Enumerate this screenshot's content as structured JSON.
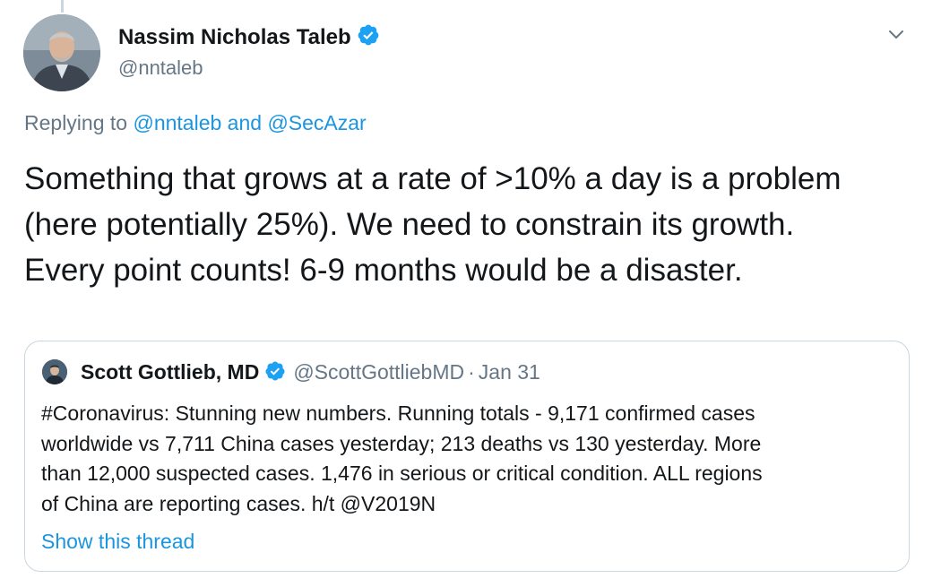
{
  "colors": {
    "accent": "#1b95e0",
    "verified": "#1da1f2",
    "secondary_text": "#657786",
    "primary_text": "#14171a",
    "border": "#ccd6dd"
  },
  "tweet": {
    "author": {
      "name": "Nassim Nicholas Taleb",
      "handle": "@nntaleb",
      "verified": true,
      "avatar_icon": "profile-photo"
    },
    "menu_icon": "chevron-down-icon",
    "replying": {
      "prefix": "Replying to",
      "mention_1": "@nntaleb",
      "conjunction": "and",
      "mention_2": "@SecAzar"
    },
    "text_lines": [
      "Something that grows at a rate of >10% a day is a problem",
      "(here potentially 25%). We need to constrain its growth.",
      "Every point counts!  6-9 months would be a disaster."
    ]
  },
  "quote": {
    "author": {
      "name": "Scott Gottlieb, MD",
      "handle": "@ScottGottliebMD",
      "verified": true
    },
    "separator": "·",
    "date": "Jan 31",
    "text_lines": [
      "#Coronavirus: Stunning new numbers. Running totals - 9,171 confirmed cases",
      "worldwide vs 7,711 China cases yesterday; 213 deaths vs 130 yesterday. More",
      "than 12,000 suspected cases.  1,476 in serious or critical condition. ALL regions",
      "of China are reporting cases. h/t @V2019N"
    ],
    "show_thread": "Show this thread"
  }
}
